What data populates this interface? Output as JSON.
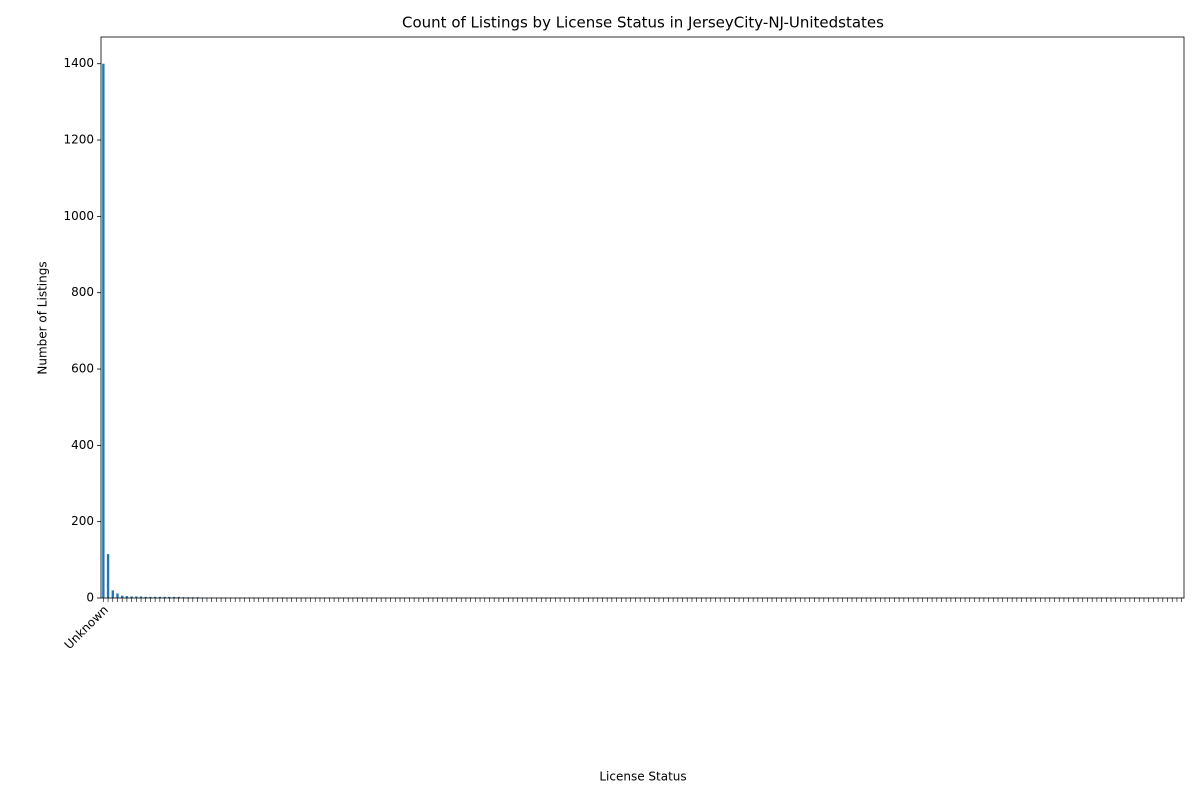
{
  "chart_data": {
    "type": "bar",
    "title": "Count of Listings by License Status in JerseyCity-NJ-Unitedstates",
    "x_label": "License Status",
    "y_label": "Number of Listings",
    "color": "#1f77b4",
    "ylim": [
      0,
      1470
    ],
    "yticks": [
      0,
      200,
      400,
      600,
      800,
      1000,
      1200,
      1400
    ],
    "categories": [
      "Unknown",
      null,
      null,
      null,
      null,
      null,
      null,
      null,
      null,
      null,
      null,
      null,
      null,
      null,
      null,
      null,
      null,
      null,
      null,
      null,
      null,
      null,
      null,
      null,
      null,
      null,
      null,
      null,
      null,
      null,
      null,
      null,
      null,
      null,
      null,
      null,
      null,
      null,
      null,
      null,
      null,
      null,
      null,
      null,
      null,
      null,
      null,
      null,
      null,
      null,
      null,
      null,
      null,
      null,
      null,
      null,
      null,
      null,
      null,
      null,
      null,
      null,
      null,
      null,
      null,
      null,
      null,
      null,
      null,
      null,
      null,
      null,
      null,
      null,
      null,
      null,
      null,
      null,
      null,
      null,
      null,
      null,
      null,
      null,
      null,
      null,
      null,
      null,
      null,
      null,
      null,
      null,
      null,
      null,
      null,
      null,
      null,
      null,
      null,
      null,
      null,
      null,
      null,
      null,
      null,
      null,
      null,
      null,
      null,
      null,
      null,
      null,
      null,
      null,
      null,
      null,
      null,
      null,
      null,
      null,
      null,
      null,
      null,
      null,
      null,
      null,
      null,
      null,
      null,
      null,
      null,
      null,
      null,
      null,
      null,
      null,
      null,
      null,
      null,
      null,
      null,
      null,
      null,
      null,
      null,
      null,
      null,
      null,
      null,
      null,
      null,
      null,
      null,
      null,
      null,
      null,
      null,
      null,
      null,
      null,
      null,
      null,
      null,
      null,
      null,
      null,
      null,
      null,
      null,
      null,
      null,
      null,
      null,
      null,
      null,
      null,
      null,
      null,
      null,
      null,
      null,
      null,
      null,
      null,
      null,
      null,
      null,
      null,
      null,
      null,
      null,
      null,
      null,
      null,
      null,
      null,
      null,
      null,
      null,
      null,
      null,
      null,
      null,
      null,
      null,
      null,
      null,
      null,
      null,
      null,
      null,
      null,
      null,
      null,
      null,
      null,
      null,
      null,
      null,
      null,
      null,
      null,
      null,
      null,
      null,
      null,
      null,
      null,
      null,
      null
    ],
    "values": [
      1400,
      115,
      20,
      12,
      6,
      5,
      4,
      4,
      4,
      3,
      3,
      3,
      3,
      3,
      3,
      3,
      3,
      2,
      2,
      2,
      2,
      1,
      1,
      1,
      1,
      1,
      1,
      1,
      1,
      1,
      1,
      1,
      1,
      1,
      1,
      1,
      1,
      1,
      1,
      1,
      1,
      1,
      1,
      1,
      1,
      1,
      1,
      1,
      1,
      1,
      1,
      1,
      1,
      1,
      1,
      1,
      1,
      1,
      1,
      1,
      1,
      1,
      1,
      1,
      1,
      1,
      1,
      1,
      1,
      1,
      1,
      1,
      1,
      1,
      1,
      1,
      1,
      1,
      1,
      1,
      1,
      1,
      1,
      1,
      1,
      1,
      1,
      1,
      1,
      1,
      1,
      1,
      1,
      1,
      1,
      1,
      1,
      1,
      1,
      1,
      1,
      1,
      1,
      1,
      1,
      1,
      1,
      1,
      1,
      1,
      1,
      1,
      1,
      1,
      1,
      1,
      1,
      1,
      1,
      1,
      1,
      1,
      1,
      1,
      1,
      1,
      1,
      1,
      1,
      1,
      1,
      1,
      1,
      1,
      1,
      1,
      1,
      1,
      1,
      1,
      1,
      1,
      1,
      1,
      1,
      1,
      1,
      1,
      1,
      1,
      1,
      1,
      1,
      1,
      1,
      1,
      1,
      1,
      1,
      1,
      1,
      1,
      1,
      1,
      1,
      1,
      1,
      1,
      1,
      1,
      1,
      1,
      1,
      1,
      1,
      1,
      1,
      1,
      1,
      1,
      1,
      1,
      1,
      1,
      1,
      1,
      1,
      1,
      1,
      1,
      1,
      1,
      1,
      1,
      1,
      1,
      1,
      1,
      1,
      1,
      1,
      1,
      1,
      1,
      1,
      1,
      1,
      1,
      1,
      1,
      1,
      1,
      1,
      1,
      1,
      1,
      1,
      1,
      1,
      1,
      1,
      1,
      1,
      1,
      1,
      1,
      1,
      1,
      1,
      1
    ]
  }
}
